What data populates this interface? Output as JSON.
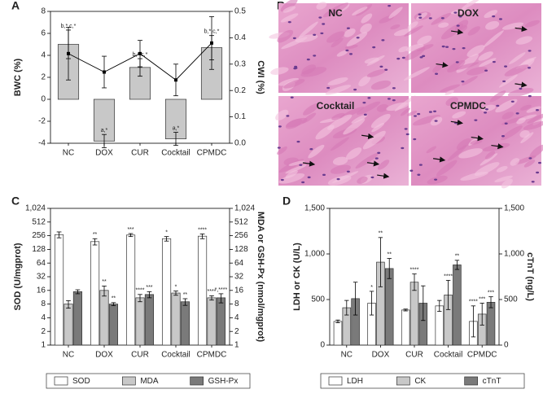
{
  "chart_data": [
    {
      "type": "bar",
      "panel": "A",
      "y_label": "BWC (%)",
      "y2_label": "CWI (%)",
      "categories": [
        "NC",
        "DOX",
        "CUR",
        "Cocktail",
        "CPMDC"
      ],
      "ylim": [
        -4,
        8
      ],
      "yticks": [
        -4,
        -2,
        0,
        2,
        4,
        6,
        8
      ],
      "y2lim": [
        0,
        0.5
      ],
      "y2ticks": [
        {
          "value": 0,
          "label": "0.0"
        },
        0.1,
        0.2,
        0.3,
        0.4,
        0.5
      ],
      "series": [
        {
          "color": "#c8c8c8",
          "values": [
            5.0,
            -3.8,
            2.9,
            -3.6,
            4.7
          ],
          "errors": [
            1.3,
            0.6,
            0.8,
            0.6,
            1.1
          ],
          "annotations": [
            "b,*,c,*",
            "a,*",
            "b,*,c,*",
            "a,*",
            "b,*,c,*"
          ]
        },
        {
          "type": "line",
          "axis": "y2",
          "color": "#000000",
          "values": [
            0.34,
            0.27,
            0.34,
            0.24,
            0.38
          ],
          "errors": [
            0.1,
            0.06,
            0.05,
            0.06,
            0.1
          ]
        }
      ]
    },
    {
      "type": "bar",
      "panel": "C",
      "y_label": "SOD (U/mgprot)",
      "y2_label": "MDA or GSH-Px (nmol/mgprot)",
      "log_scale": true,
      "categories": [
        "NC",
        "DOX",
        "CUR",
        "Cocktail",
        "CPMDC"
      ],
      "ylim": [
        1,
        1024
      ],
      "yticks": [
        1,
        2,
        4,
        8,
        16,
        32,
        64,
        128,
        256,
        512,
        {
          "value": 1024,
          "label": "1,024"
        }
      ],
      "y2lim": [
        1,
        1024
      ],
      "y2ticks": [
        1,
        2,
        4,
        8,
        16,
        32,
        64,
        128,
        256,
        512,
        {
          "value": 1024,
          "label": "1,024"
        }
      ],
      "series": [
        {
          "name": "SOD",
          "color": "#ffffff",
          "values": [
            270,
            190,
            265,
            220,
            250
          ],
          "errors": [
            40,
            30,
            20,
            25,
            30
          ],
          "annotations": [
            null,
            "**",
            "***",
            "*",
            "****"
          ]
        },
        {
          "name": "MDA",
          "axis": "y2",
          "color": "#c8c8c8",
          "values": [
            8,
            16,
            11,
            14,
            11
          ],
          "errors": [
            1.5,
            4,
            2,
            1.5,
            1.2
          ],
          "annotations": [
            null,
            "**",
            "****",
            "*",
            "****"
          ]
        },
        {
          "name": "GSH-Px",
          "axis": "y2",
          "color": "#7a7a7a",
          "values": [
            15,
            8,
            13,
            9,
            11
          ],
          "errors": [
            1.5,
            0.6,
            2,
            1.5,
            2.5
          ],
          "annotations": [
            null,
            "**",
            "***",
            "**",
            "*,****"
          ]
        }
      ]
    },
    {
      "type": "bar",
      "panel": "D",
      "y_label": "LDH or CK (U/L)",
      "y2_label": "cTnT (ng/L)",
      "categories": [
        "NC",
        "DOX",
        "CUR",
        "Cocktail",
        "CPMDC"
      ],
      "ylim": [
        0,
        1500
      ],
      "yticks": [
        0,
        500,
        {
          "value": 1000,
          "label": "1,000"
        },
        {
          "value": 1500,
          "label": "1,500"
        }
      ],
      "y2lim": [
        0,
        1500
      ],
      "y2ticks": [
        0,
        500,
        {
          "value": 1000,
          "label": "1,000"
        },
        {
          "value": 1500,
          "label": "1,500"
        }
      ],
      "series": [
        {
          "name": "LDH",
          "color": "#ffffff",
          "values": [
            260,
            460,
            385,
            430,
            260
          ],
          "errors": [
            15,
            130,
            10,
            60,
            170
          ],
          "annotations": [
            null,
            "*",
            null,
            null,
            "****"
          ]
        },
        {
          "name": "CK",
          "color": "#c8c8c8",
          "values": [
            410,
            910,
            690,
            550,
            340
          ],
          "errors": [
            80,
            270,
            90,
            160,
            120
          ],
          "annotations": [
            null,
            "**",
            "****",
            "****",
            "***"
          ]
        },
        {
          "name": "cTnT",
          "axis": "y2",
          "color": "#7a7a7a",
          "values": [
            510,
            840,
            460,
            880,
            470
          ],
          "errors": [
            180,
            110,
            190,
            50,
            60
          ],
          "annotations": [
            null,
            "**",
            null,
            "**",
            "***"
          ]
        }
      ]
    }
  ],
  "images": {
    "panel": "B",
    "labels": [
      "NC",
      "DOX",
      "Cocktail",
      "CPMDC"
    ]
  }
}
